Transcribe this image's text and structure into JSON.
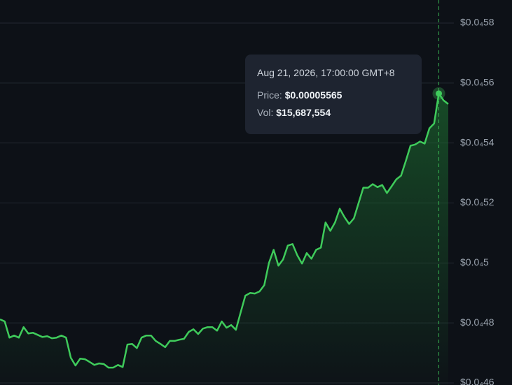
{
  "chart_data": {
    "type": "line",
    "color": "#3fcb5b",
    "grid": true,
    "ylim": [
      4.6e-05,
      5.8e-05
    ],
    "yticks": [
      {
        "value": 5.8e-05,
        "label": "$0.0₄58"
      },
      {
        "value": 5.6e-05,
        "label": "$0.0₄56"
      },
      {
        "value": 5.4e-05,
        "label": "$0.0₄54"
      },
      {
        "value": 5.2e-05,
        "label": "$0.0₄52"
      },
      {
        "value": 5e-05,
        "label": "$0.0₄5"
      },
      {
        "value": 4.8e-05,
        "label": "$0.0₄48"
      },
      {
        "value": 4.6e-05,
        "label": "$0.0₄46"
      }
    ],
    "values": [
      4.812e-05,
      4.805e-05,
      4.751e-05,
      4.758e-05,
      4.751e-05,
      4.786e-05,
      4.765e-05,
      4.767e-05,
      4.76e-05,
      4.753e-05,
      4.756e-05,
      4.749e-05,
      4.751e-05,
      4.758e-05,
      4.751e-05,
      4.684e-05,
      4.658e-05,
      4.681e-05,
      4.679e-05,
      4.67e-05,
      4.66e-05,
      4.665e-05,
      4.663e-05,
      4.651e-05,
      4.651e-05,
      4.66e-05,
      4.653e-05,
      4.728e-05,
      4.73e-05,
      4.716e-05,
      4.751e-05,
      4.758e-05,
      4.758e-05,
      4.74e-05,
      4.73e-05,
      4.719e-05,
      4.74e-05,
      4.74e-05,
      4.744e-05,
      4.747e-05,
      4.77e-05,
      4.779e-05,
      4.763e-05,
      4.781e-05,
      4.786e-05,
      4.786e-05,
      4.774e-05,
      4.805e-05,
      4.784e-05,
      4.793e-05,
      4.777e-05,
      4.835e-05,
      4.891e-05,
      4.9e-05,
      4.898e-05,
      4.905e-05,
      4.926e-05,
      5e-05,
      5.044e-05,
      4.991e-05,
      5.012e-05,
      5.058e-05,
      5.063e-05,
      5.026e-05,
      4.998e-05,
      5.033e-05,
      5.014e-05,
      5.044e-05,
      5.051e-05,
      5.135e-05,
      5.107e-05,
      5.135e-05,
      5.181e-05,
      5.153e-05,
      5.13e-05,
      5.149e-05,
      5.2e-05,
      5.251e-05,
      5.251e-05,
      5.263e-05,
      5.253e-05,
      5.26e-05,
      5.233e-05,
      5.256e-05,
      5.279e-05,
      5.291e-05,
      5.34e-05,
      5.391e-05,
      5.395e-05,
      5.405e-05,
      5.398e-05,
      5.449e-05,
      5.465e-05,
      5.565e-05,
      5.542e-05,
      5.53e-05
    ],
    "tooltip": {
      "date": "Aug 21, 2026, 17:00:00 GMT+8",
      "price_label": "Price:",
      "price": "$0.00005565",
      "vol_label": "Vol:",
      "vol": "$15,687,554"
    }
  }
}
